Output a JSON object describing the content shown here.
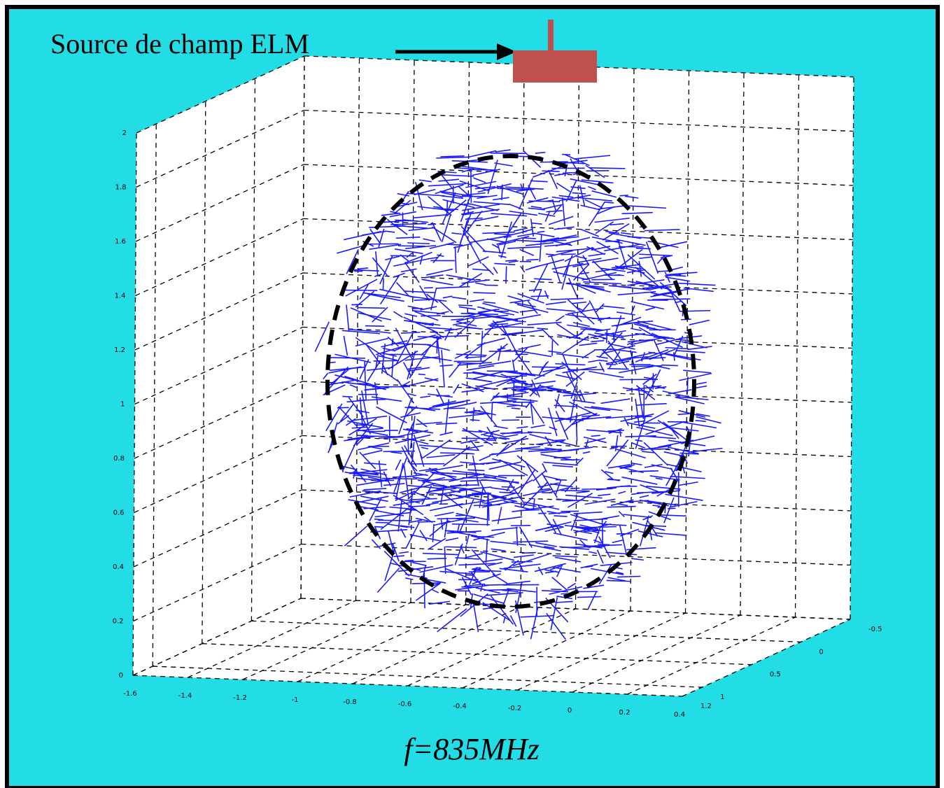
{
  "chart_data": {
    "type": "quiver3",
    "annotation": "Source de champ ELM",
    "caption": "f=835MHz",
    "xlim": [
      -1.6,
      0.4
    ],
    "xticks": [
      -1.6,
      -1.4,
      -1.2,
      -1,
      -0.8,
      -0.6,
      -0.4,
      -0.2,
      0,
      0.2,
      0.4
    ],
    "ylim": [
      1.2,
      -0.5
    ],
    "yticks": [
      1.2,
      1,
      0.5,
      0,
      -0.5
    ],
    "zlim": [
      0,
      2
    ],
    "zticks": [
      0,
      0.2,
      0.4,
      0.6,
      0.8,
      1,
      1.2,
      1.4,
      1.6,
      1.8,
      2
    ],
    "grid": true,
    "color": "#1a1aff"
  }
}
